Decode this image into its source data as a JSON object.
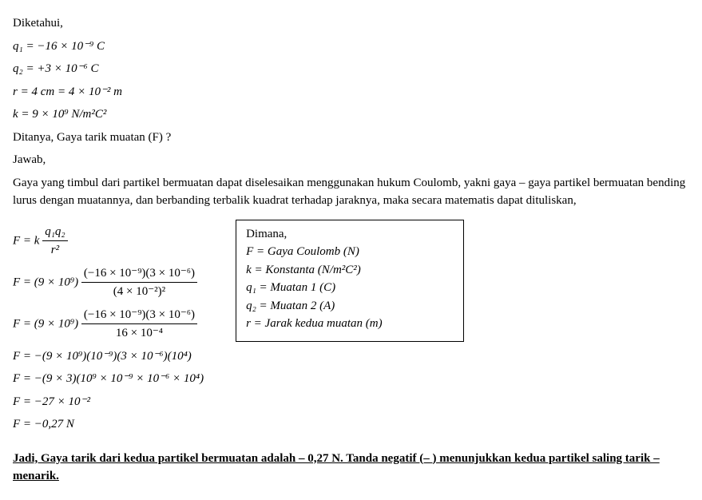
{
  "given_label": "Diketahui,",
  "eq_q1": "q₁ = −16 × 10⁻⁹ C",
  "eq_q2": "q₂ = +3 × 10⁻⁶ C",
  "eq_r": "r = 4 cm = 4 × 10⁻² m",
  "eq_k": "k = 9 × 10⁹ N/m²C²",
  "asked": "Ditanya, Gaya tarik muatan (F) ?",
  "answer_label": "Jawab,",
  "explain": "Gaya yang timbul dari partikel bermuatan dapat diselesaikan menggunakan hukum Coulomb, yakni gaya – gaya partikel bermuatan bending lurus dengan muatannya, dan berbanding terbalik kuadrat terhadap jaraknya, maka secara matematis dapat dituliskan,",
  "formula": {
    "lhs": "F = k",
    "num": "q₁q₂",
    "den": "r²"
  },
  "step1": {
    "lhs": "F = (9 × 10⁹)",
    "num": "(−16 × 10⁻⁹)(3 × 10⁻⁶)",
    "den": "(4 × 10⁻²)²"
  },
  "step2": {
    "lhs": "F = (9 × 10⁹)",
    "num": "(−16 × 10⁻⁹)(3 × 10⁻⁶)",
    "den": "16 × 10⁻⁴"
  },
  "step3": "F = −(9 × 10⁹)(10⁻⁹)(3 × 10⁻⁶)(10⁴)",
  "step4": "F = −(9 × 3)(10⁹ × 10⁻⁹ × 10⁻⁶ × 10⁴)",
  "step5": "F = −27 × 10⁻²",
  "step6": "F = −0,27 N",
  "legend": {
    "title": "Dimana,",
    "f": "F = Gaya Coulomb (N)",
    "k": "k = Konstanta (N/m²C²)",
    "q1": "q₁ = Muatan 1 (C)",
    "q2": "q₂ = Muatan 2 (A)",
    "r": "r = Jarak kedua muatan (m)"
  },
  "conclusion": "Jadi, Gaya tarik dari kedua partikel bermuatan adalah – 0,27 N. Tanda negatif (– ) menunjukkan kedua partikel saling tarik – menarik."
}
